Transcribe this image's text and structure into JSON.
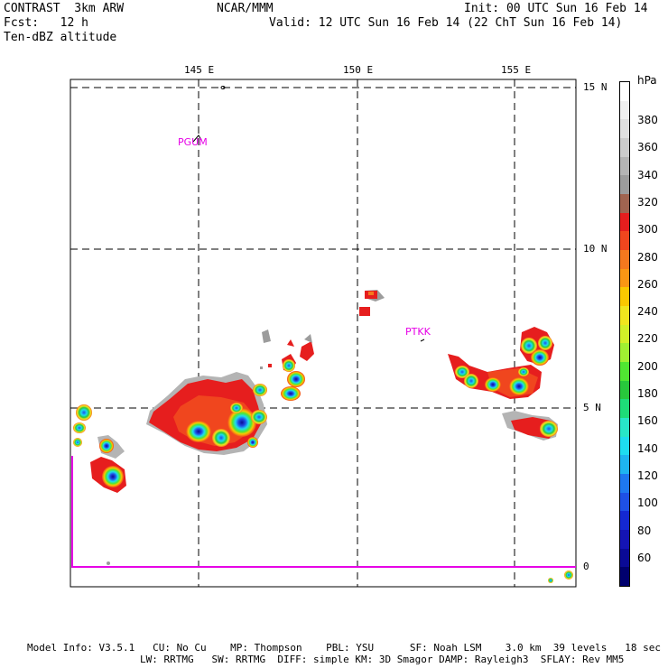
{
  "header": {
    "model_title": "CONTRAST  3km ARW",
    "forecast": "Fcst:   12 h",
    "field_name": "Ten-dBZ altitude",
    "center": "NCAR/MMM",
    "init": "Init: 00 UTC Sun 16 Feb 14",
    "valid": "Valid: 12 UTC Sun 16 Feb 14 (22 ChT Sun 16 Feb 14)"
  },
  "axes": {
    "lon_labels": [
      "145 E",
      "150 E",
      "155 E"
    ],
    "lat_labels": [
      "15 N",
      "10 N",
      "5 N",
      "0"
    ]
  },
  "stations": [
    "PGUM",
    "PTKK"
  ],
  "colorbar": {
    "units": "hPa",
    "tick_labels": [
      "380",
      "360",
      "340",
      "320",
      "300",
      "280",
      "260",
      "240",
      "220",
      "200",
      "180",
      "160",
      "140",
      "120",
      "100",
      "80",
      "60"
    ],
    "colors": [
      "#ffffff",
      "#f0f0f0",
      "#e0e0e0",
      "#cccccc",
      "#b4b4b4",
      "#9c9c9c",
      "#a06450",
      "#e61e1e",
      "#f0461e",
      "#f5781e",
      "#fa9614",
      "#fac800",
      "#f0e61e",
      "#d2f028",
      "#a0f032",
      "#50e632",
      "#28c83c",
      "#1edc78",
      "#28e6c8",
      "#1edcf0",
      "#1eb4f0",
      "#1e78f0",
      "#1e50e6",
      "#1428d2",
      "#1414b4",
      "#0a0a96",
      "#00006e"
    ]
  },
  "footer": {
    "line1": "Model Info: V3.5.1   CU: No Cu    MP: Thompson    PBL: YSU      SF: Noah LSM    3.0 km  39 levels   18 sec",
    "line2": "LW: RRTMG   SW: RRTMG  DIFF: simple KM: 3D Smagor DAMP: Rayleigh3  SFLAY: Rev MM5"
  }
}
